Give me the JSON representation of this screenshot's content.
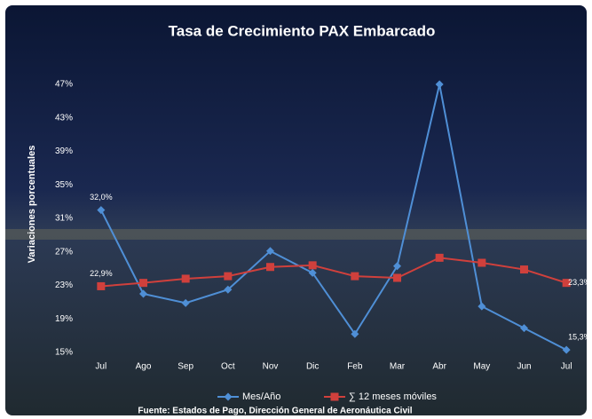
{
  "chart_data": {
    "type": "line",
    "title": "Tasa de Crecimiento PAX Embarcado",
    "y_label": "Variaciones  porcentuales",
    "source": "Fuente: Estados de Pago, Dirección General de Aeronáutica Civil",
    "categories": [
      "Jul",
      "Ago",
      "Sep",
      "Oct",
      "Nov",
      "Dic",
      "Feb",
      "Mar",
      "Abr",
      "May",
      "Jun",
      "Jul"
    ],
    "series": [
      {
        "name": "Mes/Año",
        "color": "#4f8fd6",
        "marker": "diamond",
        "values": [
          32.0,
          22.0,
          20.9,
          22.5,
          27.1,
          24.5,
          17.2,
          25.3,
          47.0,
          20.5,
          17.9,
          15.3
        ],
        "value_labels": [
          "32,0%",
          null,
          null,
          null,
          null,
          null,
          null,
          null,
          null,
          null,
          null,
          "15,3%"
        ]
      },
      {
        "name": "∑ 12 meses móviles",
        "color": "#d0403c",
        "marker": "square",
        "values": [
          22.9,
          23.3,
          23.8,
          24.1,
          25.2,
          25.4,
          24.1,
          23.9,
          26.3,
          25.7,
          24.9,
          23.3
        ],
        "value_labels": [
          "22,9%",
          null,
          null,
          null,
          null,
          null,
          null,
          null,
          null,
          null,
          null,
          "23,3%"
        ]
      }
    ],
    "ylim": [
      15,
      47
    ],
    "yticks": [
      {
        "value": 15,
        "label": "15%"
      },
      {
        "value": 19,
        "label": "19%"
      },
      {
        "value": 23,
        "label": "23%"
      },
      {
        "value": 27,
        "label": "27%"
      },
      {
        "value": 31,
        "label": "31%"
      },
      {
        "value": 35,
        "label": "35%"
      },
      {
        "value": 39,
        "label": "39%"
      },
      {
        "value": 43,
        "label": "43%"
      },
      {
        "value": 47,
        "label": "47%"
      }
    ],
    "grid": false,
    "legend": "bottom"
  }
}
